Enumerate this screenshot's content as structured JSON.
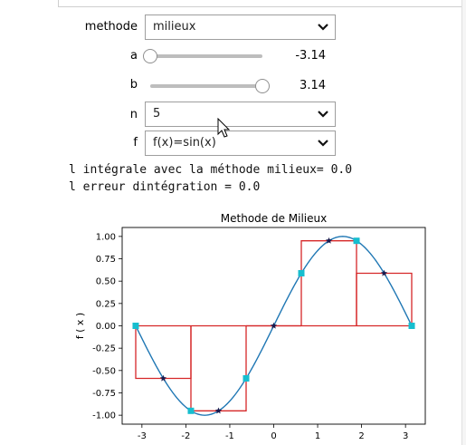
{
  "widgets": {
    "methode": {
      "label": "methode",
      "value": "milieux"
    },
    "a": {
      "label": "a",
      "value": "-3.14",
      "level": -3.14
    },
    "b": {
      "label": "b",
      "value": "3.14",
      "level": 3.14
    },
    "n": {
      "label": "n",
      "value": "5"
    },
    "f": {
      "label": "f",
      "value": "f(x)=sin(x)"
    }
  },
  "output": {
    "line1": "l intégrale avec la méthode milieux= 0.0",
    "line2": "l erreur dintégration = 0.0"
  },
  "colors": {
    "curve": "#1f77b4",
    "rect": "#d62728",
    "marker": "#17becf",
    "star": "#1a1a4d"
  },
  "chart_data": {
    "type": "line",
    "title": "Methode de Milieux",
    "xlabel": "",
    "ylabel": "f ( x )",
    "xlim": [
      -3.45,
      3.45
    ],
    "ylim": [
      -1.1,
      1.1
    ],
    "xticks": [
      "-3",
      "-2",
      "-1",
      "0",
      "1",
      "2",
      "3"
    ],
    "yticks": [
      "1.00",
      "0.75",
      "0.50",
      "0.25",
      "0.00",
      "-0.25",
      "-0.50",
      "-0.75",
      "-1.00"
    ],
    "a": -3.14159,
    "b": 3.14159,
    "n": 5,
    "function": "sin(x)",
    "series": [
      {
        "x": [
          -3.1416,
          -1.885,
          -0.6283,
          0.6283,
          1.885,
          3.1416
        ],
        "y": [
          0.0,
          -0.951,
          -0.588,
          0.588,
          0.951,
          0.0
        ]
      },
      {
        "x": [
          -2.5133,
          -1.2566,
          0.0,
          1.2566,
          2.5133
        ],
        "y": [
          -0.588,
          -0.951,
          0.0,
          0.951,
          0.588
        ]
      }
    ]
  }
}
